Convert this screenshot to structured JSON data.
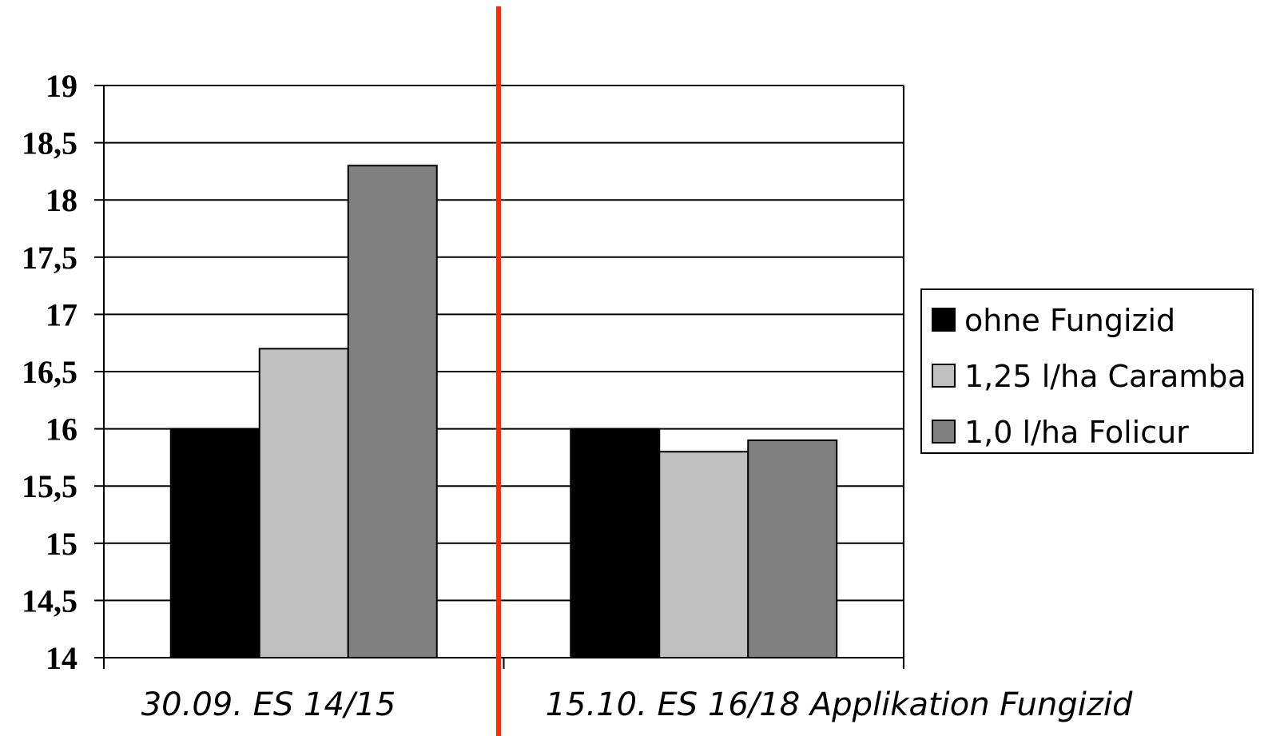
{
  "chart_data": {
    "type": "bar",
    "title": "",
    "xlabel": "",
    "ylabel": "",
    "ylim": [
      14,
      19
    ],
    "yticks": [
      "19",
      "18,5",
      "18",
      "17,5",
      "17",
      "16,5",
      "16",
      "15,5",
      "15",
      "14,5",
      "14"
    ],
    "categories": [
      "30.09. ES 14/15",
      "15.10. ES 16/18 Applikation Fungizid"
    ],
    "series": [
      {
        "name": "ohne Fungizid",
        "values": [
          16.0,
          16.0
        ],
        "color": "#000000"
      },
      {
        "name": "1,25 l/ha Caramba",
        "values": [
          16.7,
          15.8
        ],
        "color": "#c0c0c0"
      },
      {
        "name": "1,0 l/ha Folicur",
        "values": [
          18.3,
          15.9
        ],
        "color": "#808080"
      }
    ],
    "grid": true,
    "legend": "right",
    "separator_color": "#ff2a00"
  }
}
